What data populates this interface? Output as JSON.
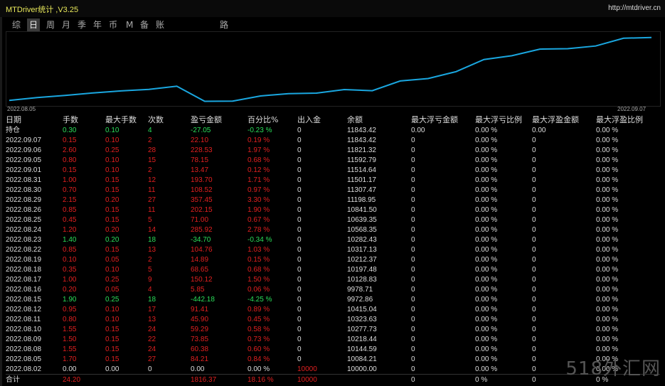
{
  "window": {
    "title": "MTDriver统计 ,V3.25",
    "url": "http://mtdriver.cn"
  },
  "tabs": [
    {
      "label": "综"
    },
    {
      "label": "日",
      "active": true
    },
    {
      "label": "周"
    },
    {
      "label": "月"
    },
    {
      "label": "季"
    },
    {
      "label": "年"
    },
    {
      "label": "币"
    },
    {
      "label": "M"
    },
    {
      "label": "备"
    },
    {
      "label": "账户"
    },
    {
      "label": "路径"
    }
  ],
  "chart": {
    "date_start": "2022.08.05",
    "date_end": "2022.09.07",
    "line_color": "#1aa7e0",
    "balance": [
      10000.0,
      10084.21,
      10144.59,
      10218.44,
      10277.73,
      10323.63,
      10415.04,
      9972.86,
      9978.71,
      10128.83,
      10197.48,
      10212.37,
      10317.13,
      10282.43,
      10568.35,
      10639.35,
      10841.5,
      11198.95,
      11307.47,
      11501.17,
      11514.64,
      11592.79,
      11821.32,
      11843.42
    ]
  },
  "table": {
    "headers": [
      "日期",
      "手数",
      "最大手数",
      "次数",
      "盈亏金额",
      "百分比%",
      "出入金",
      "余额",
      "最大浮亏金额",
      "最大浮亏比例",
      "最大浮盈金额",
      "最大浮盈比例"
    ],
    "position_row": {
      "date": "持仓",
      "lots": "0.30",
      "max_lots": "0.10",
      "count": "4",
      "pl": "-27.05",
      "pct": "-0.23 %",
      "io": "0",
      "bal": "11843.42",
      "mfl": "0.00",
      "mflp": "0.00 %",
      "mfp": "0.00",
      "mfpp": "0.00 %"
    },
    "rows": [
      {
        "date": "2022.09.07",
        "lots": "0.15",
        "max_lots": "0.10",
        "count": "2",
        "pl": "22.10",
        "pct": "0.19 %",
        "io": "0",
        "bal": "11843.42",
        "mfl": "0",
        "mflp": "0.00 %",
        "mfp": "0",
        "mfpp": "0.00 %"
      },
      {
        "date": "2022.09.06",
        "lots": "2.60",
        "max_lots": "0.25",
        "count": "28",
        "pl": "228.53",
        "pct": "1.97 %",
        "io": "0",
        "bal": "11821.32",
        "mfl": "0",
        "mflp": "0.00 %",
        "mfp": "0",
        "mfpp": "0.00 %"
      },
      {
        "date": "2022.09.05",
        "lots": "0.80",
        "max_lots": "0.10",
        "count": "15",
        "pl": "78.15",
        "pct": "0.68 %",
        "io": "0",
        "bal": "11592.79",
        "mfl": "0",
        "mflp": "0.00 %",
        "mfp": "0",
        "mfpp": "0.00 %"
      },
      {
        "date": "2022.09.01",
        "lots": "0.15",
        "max_lots": "0.10",
        "count": "2",
        "pl": "13.47",
        "pct": "0.12 %",
        "io": "0",
        "bal": "11514.64",
        "mfl": "0",
        "mflp": "0.00 %",
        "mfp": "0",
        "mfpp": "0.00 %"
      },
      {
        "date": "2022.08.31",
        "lots": "1.00",
        "max_lots": "0.15",
        "count": "12",
        "pl": "193.70",
        "pct": "1.71 %",
        "io": "0",
        "bal": "11501.17",
        "mfl": "0",
        "mflp": "0.00 %",
        "mfp": "0",
        "mfpp": "0.00 %"
      },
      {
        "date": "2022.08.30",
        "lots": "0.70",
        "max_lots": "0.15",
        "count": "11",
        "pl": "108.52",
        "pct": "0.97 %",
        "io": "0",
        "bal": "11307.47",
        "mfl": "0",
        "mflp": "0.00 %",
        "mfp": "0",
        "mfpp": "0.00 %"
      },
      {
        "date": "2022.08.29",
        "lots": "2.15",
        "max_lots": "0.20",
        "count": "27",
        "pl": "357.45",
        "pct": "3.30 %",
        "io": "0",
        "bal": "11198.95",
        "mfl": "0",
        "mflp": "0.00 %",
        "mfp": "0",
        "mfpp": "0.00 %"
      },
      {
        "date": "2022.08.26",
        "lots": "0.85",
        "max_lots": "0.15",
        "count": "11",
        "pl": "202.15",
        "pct": "1.90 %",
        "io": "0",
        "bal": "10841.50",
        "mfl": "0",
        "mflp": "0.00 %",
        "mfp": "0",
        "mfpp": "0.00 %"
      },
      {
        "date": "2022.08.25",
        "lots": "0.45",
        "max_lots": "0.15",
        "count": "5",
        "pl": "71.00",
        "pct": "0.67 %",
        "io": "0",
        "bal": "10639.35",
        "mfl": "0",
        "mflp": "0.00 %",
        "mfp": "0",
        "mfpp": "0.00 %"
      },
      {
        "date": "2022.08.24",
        "lots": "1.20",
        "max_lots": "0.20",
        "count": "14",
        "pl": "285.92",
        "pct": "2.78 %",
        "io": "0",
        "bal": "10568.35",
        "mfl": "0",
        "mflp": "0.00 %",
        "mfp": "0",
        "mfpp": "0.00 %"
      },
      {
        "date": "2022.08.23",
        "lots": "1.40",
        "max_lots": "0.20",
        "count": "18",
        "pl": "-34.70",
        "pct": "-0.34 %",
        "io": "0",
        "bal": "10282.43",
        "mfl": "0",
        "mflp": "0.00 %",
        "mfp": "0",
        "mfpp": "0.00 %",
        "neg": true
      },
      {
        "date": "2022.08.22",
        "lots": "0.85",
        "max_lots": "0.15",
        "count": "13",
        "pl": "104.76",
        "pct": "1.03 %",
        "io": "0",
        "bal": "10317.13",
        "mfl": "0",
        "mflp": "0.00 %",
        "mfp": "0",
        "mfpp": "0.00 %"
      },
      {
        "date": "2022.08.19",
        "lots": "0.10",
        "max_lots": "0.05",
        "count": "2",
        "pl": "14.89",
        "pct": "0.15 %",
        "io": "0",
        "bal": "10212.37",
        "mfl": "0",
        "mflp": "0.00 %",
        "mfp": "0",
        "mfpp": "0.00 %"
      },
      {
        "date": "2022.08.18",
        "lots": "0.35",
        "max_lots": "0.10",
        "count": "5",
        "pl": "68.65",
        "pct": "0.68 %",
        "io": "0",
        "bal": "10197.48",
        "mfl": "0",
        "mflp": "0.00 %",
        "mfp": "0",
        "mfpp": "0.00 %"
      },
      {
        "date": "2022.08.17",
        "lots": "1.00",
        "max_lots": "0.25",
        "count": "9",
        "pl": "150.12",
        "pct": "1.50 %",
        "io": "0",
        "bal": "10128.83",
        "mfl": "0",
        "mflp": "0.00 %",
        "mfp": "0",
        "mfpp": "0.00 %"
      },
      {
        "date": "2022.08.16",
        "lots": "0.20",
        "max_lots": "0.05",
        "count": "4",
        "pl": "5.85",
        "pct": "0.06 %",
        "io": "0",
        "bal": "9978.71",
        "mfl": "0",
        "mflp": "0.00 %",
        "mfp": "0",
        "mfpp": "0.00 %"
      },
      {
        "date": "2022.08.15",
        "lots": "1.90",
        "max_lots": "0.25",
        "count": "18",
        "pl": "-442.18",
        "pct": "-4.25 %",
        "io": "0",
        "bal": "9972.86",
        "mfl": "0",
        "mflp": "0.00 %",
        "mfp": "0",
        "mfpp": "0.00 %",
        "neg": true
      },
      {
        "date": "2022.08.12",
        "lots": "0.95",
        "max_lots": "0.10",
        "count": "17",
        "pl": "91.41",
        "pct": "0.89 %",
        "io": "0",
        "bal": "10415.04",
        "mfl": "0",
        "mflp": "0.00 %",
        "mfp": "0",
        "mfpp": "0.00 %"
      },
      {
        "date": "2022.08.11",
        "lots": "0.80",
        "max_lots": "0.10",
        "count": "13",
        "pl": "45.90",
        "pct": "0.45 %",
        "io": "0",
        "bal": "10323.63",
        "mfl": "0",
        "mflp": "0.00 %",
        "mfp": "0",
        "mfpp": "0.00 %"
      },
      {
        "date": "2022.08.10",
        "lots": "1.55",
        "max_lots": "0.15",
        "count": "24",
        "pl": "59.29",
        "pct": "0.58 %",
        "io": "0",
        "bal": "10277.73",
        "mfl": "0",
        "mflp": "0.00 %",
        "mfp": "0",
        "mfpp": "0.00 %"
      },
      {
        "date": "2022.08.09",
        "lots": "1.50",
        "max_lots": "0.15",
        "count": "22",
        "pl": "73.85",
        "pct": "0.73 %",
        "io": "0",
        "bal": "10218.44",
        "mfl": "0",
        "mflp": "0.00 %",
        "mfp": "0",
        "mfpp": "0.00 %"
      },
      {
        "date": "2022.08.08",
        "lots": "1.55",
        "max_lots": "0.15",
        "count": "24",
        "pl": "60.38",
        "pct": "0.60 %",
        "io": "0",
        "bal": "10144.59",
        "mfl": "0",
        "mflp": "0.00 %",
        "mfp": "0",
        "mfpp": "0.00 %"
      },
      {
        "date": "2022.08.05",
        "lots": "1.70",
        "max_lots": "0.15",
        "count": "27",
        "pl": "84.21",
        "pct": "0.84 %",
        "io": "0",
        "bal": "10084.21",
        "mfl": "0",
        "mflp": "0.00 %",
        "mfp": "0",
        "mfpp": "0.00 %"
      },
      {
        "date": "2022.08.02",
        "lots": "0.00",
        "max_lots": "0.00",
        "count": "0",
        "pl": "0.00",
        "pct": "0.00 %",
        "io": "10000",
        "bal": "10000.00",
        "mfl": "0",
        "mflp": "0.00 %",
        "mfp": "0",
        "mfpp": "0.00 %",
        "init": true
      }
    ],
    "total_row": {
      "date": "合计",
      "lots": "24.20",
      "pl": "1816.37",
      "pct": "18.16 %",
      "io": "10000",
      "mfl": "0",
      "mflp": "0 %",
      "mfp": "0",
      "mfpp": "0 %"
    }
  },
  "watermark": "518外汇网"
}
